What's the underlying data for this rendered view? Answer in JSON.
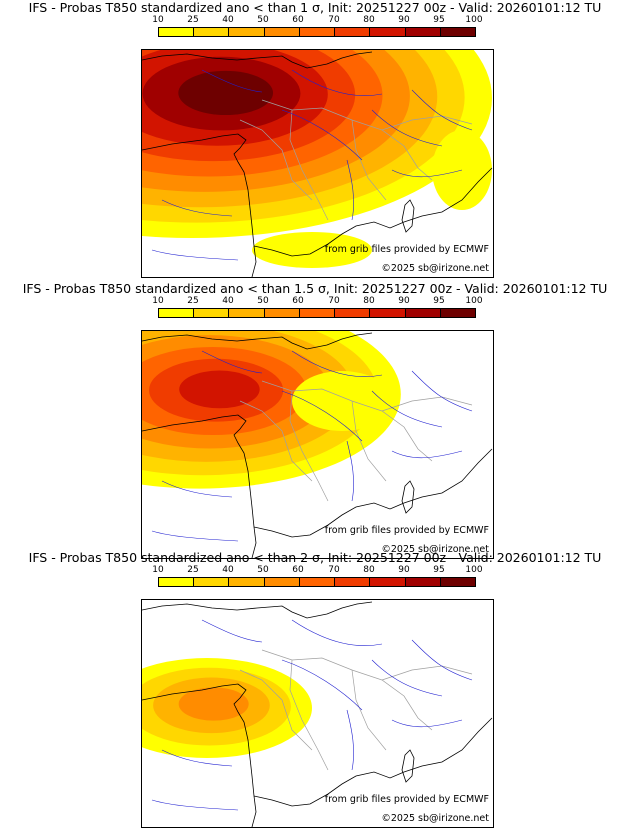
{
  "panels": [
    {
      "title": "IFS - Probas T850  standardized ano < than 1 σ, Init: 20251227 00z - Valid: 20260101:12 TU",
      "sigma": "1 σ",
      "intensity": 1.0
    },
    {
      "title": "IFS - Probas T850  standardized ano < than 1.5 σ, Init: 20251227 00z - Valid: 20260101:12 TU",
      "sigma": "1.5 σ",
      "intensity": 0.62
    },
    {
      "title": "IFS - Probas T850  standardized ano < than 2 σ, Init: 20251227 00z - Valid: 20260101:12 TU",
      "sigma": "2 σ",
      "intensity": 0.25
    }
  ],
  "scale": {
    "labels": [
      "10",
      "25",
      "40",
      "50",
      "60",
      "70",
      "80",
      "90",
      "95",
      "100"
    ],
    "colors": [
      "#ffff00",
      "#ffd700",
      "#ffb300",
      "#ff8c00",
      "#ff6400",
      "#f03c00",
      "#d21400",
      "#a00000",
      "#6e0000"
    ]
  },
  "credits": {
    "source": "from grib files provided by ECMWF",
    "copyright": "©2025 sb@irizone.net"
  },
  "colors": {
    "coast": "#000000",
    "rivers": "#2020d0",
    "borders": "#a0a0a0"
  }
}
